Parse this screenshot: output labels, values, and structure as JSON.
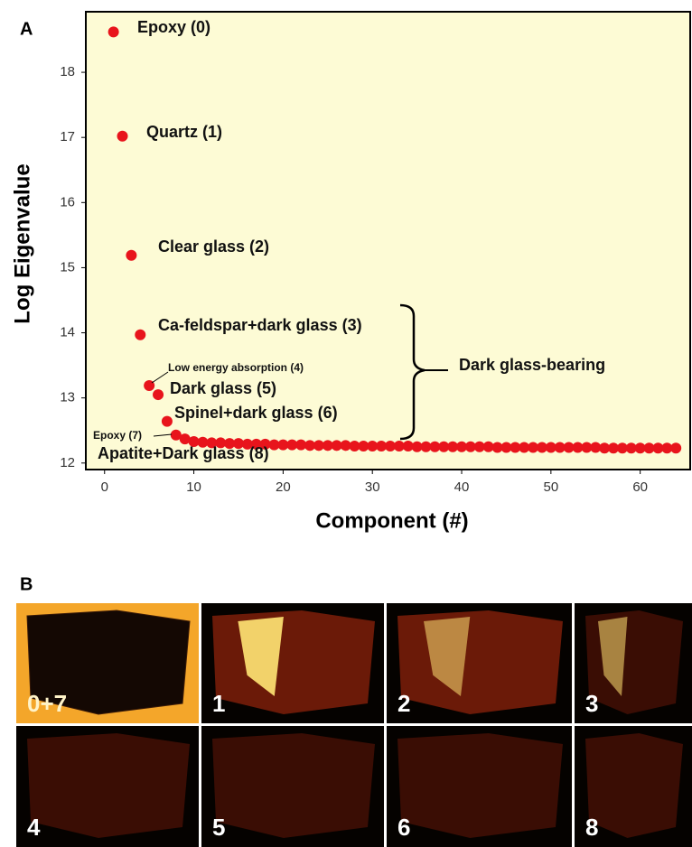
{
  "panel_a_label": "A",
  "chart_data": {
    "type": "scatter",
    "xlabel": "Component (#)",
    "ylabel": "Log Eigenvalue",
    "x": [
      1,
      2,
      3,
      4,
      5,
      6,
      7,
      8,
      9,
      10,
      11,
      12,
      13,
      14,
      15,
      16,
      17,
      18,
      19,
      20,
      21,
      22,
      23,
      24,
      25,
      26,
      27,
      28,
      29,
      30,
      31,
      32,
      33,
      34,
      35,
      36,
      37,
      38,
      39,
      40,
      41,
      42,
      43,
      44,
      45,
      46,
      47,
      48,
      49,
      50,
      51,
      52,
      53,
      54,
      55,
      56,
      57,
      58,
      59,
      60,
      61,
      62,
      63,
      64
    ],
    "values": [
      18.62,
      17.02,
      15.19,
      13.97,
      13.19,
      13.05,
      12.64,
      12.43,
      12.37,
      12.33,
      12.32,
      12.31,
      12.31,
      12.3,
      12.3,
      12.29,
      12.29,
      12.29,
      12.28,
      12.28,
      12.28,
      12.28,
      12.27,
      12.27,
      12.27,
      12.27,
      12.27,
      12.26,
      12.26,
      12.26,
      12.26,
      12.26,
      12.26,
      12.26,
      12.25,
      12.25,
      12.25,
      12.25,
      12.25,
      12.25,
      12.25,
      12.25,
      12.25,
      12.24,
      12.24,
      12.24,
      12.24,
      12.24,
      12.24,
      12.24,
      12.24,
      12.24,
      12.24,
      12.24,
      12.24,
      12.23,
      12.23,
      12.23,
      12.23,
      12.23,
      12.23,
      12.23,
      12.23,
      12.23
    ],
    "color": "#e8141c",
    "xlim": [
      -2.1,
      65.6
    ],
    "ylim": [
      11.9,
      18.93
    ],
    "xticks": [
      0,
      10,
      20,
      30,
      40,
      50,
      60
    ],
    "yticks": [
      12,
      13,
      14,
      15,
      16,
      17,
      18
    ],
    "background": "#fdfbd5",
    "annotations": [
      "Epoxy (0)",
      "Quartz (1)",
      "Clear glass (2)",
      "Ca-feldspar+dark glass (3)",
      "Low energy absorption (4)",
      "Dark glass (5)",
      "Spinel+dark glass (6)",
      "Epoxy (7)",
      "Apatite+Dark glass (8)",
      "Dark glass-bearing"
    ]
  },
  "panel_b": {
    "label": "B",
    "tiles": [
      "0+7",
      "1",
      "2",
      "3",
      "4",
      "5",
      "6",
      "8"
    ]
  }
}
